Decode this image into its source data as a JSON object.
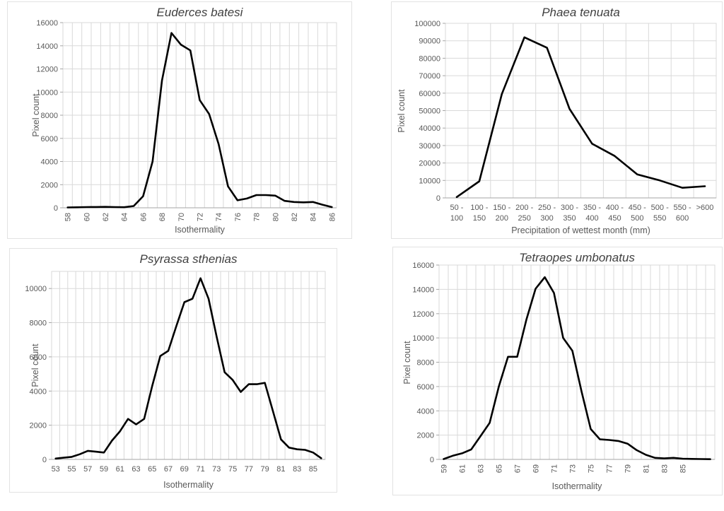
{
  "figure": {
    "background": "#ffffff",
    "panel_border_color": "#e2e2e2"
  },
  "theme": {
    "line_color": "#000000",
    "grid_color": "#d9d9d9",
    "axis_line_color": "#a6a6a6",
    "tick_label_color": "#595959",
    "axis_title_color": "#595959",
    "chart_title_color": "#404040"
  },
  "chart_data": [
    {
      "type": "line",
      "title": "Euderces batesi",
      "xlabel": "Isothermality",
      "ylabel": "Pixel count",
      "grid": true,
      "legend": null,
      "ylim": [
        0,
        16000
      ],
      "yticks": [
        0,
        2000,
        4000,
        6000,
        8000,
        10000,
        12000,
        14000,
        16000
      ],
      "x": [
        58,
        59,
        60,
        61,
        62,
        63,
        64,
        65,
        66,
        67,
        68,
        69,
        70,
        71,
        72,
        73,
        74,
        75,
        76,
        77,
        78,
        79,
        80,
        81,
        82,
        83,
        84,
        85,
        86
      ],
      "values": [
        30,
        40,
        60,
        70,
        80,
        60,
        50,
        150,
        1000,
        4000,
        11000,
        15100,
        14100,
        13600,
        9300,
        8100,
        5500,
        1850,
        650,
        800,
        1100,
        1100,
        1050,
        600,
        500,
        470,
        500,
        270,
        60
      ],
      "xticks": [
        58,
        60,
        62,
        64,
        66,
        68,
        70,
        72,
        74,
        76,
        78,
        80,
        82,
        84,
        86
      ],
      "xtick_rotation": -90
    },
    {
      "type": "line",
      "title": "Phaea tenuata",
      "xlabel": "Precipitation of wettest month (mm)",
      "ylabel": "Pixel count",
      "grid": true,
      "legend": null,
      "ylim": [
        0,
        100000
      ],
      "yticks": [
        0,
        10000,
        20000,
        30000,
        40000,
        50000,
        60000,
        70000,
        80000,
        90000,
        100000
      ],
      "categories": [
        [
          "50 -",
          "100"
        ],
        [
          "100 -",
          "150"
        ],
        [
          "150 -",
          "200"
        ],
        [
          "200 -",
          "250"
        ],
        [
          "250 -",
          "300"
        ],
        [
          "300 -",
          "350"
        ],
        [
          "350 -",
          "400"
        ],
        [
          "400 -",
          "450"
        ],
        [
          "450 -",
          "500"
        ],
        [
          "500 -",
          "550"
        ],
        [
          "550 -",
          "600"
        ],
        [
          ">600"
        ]
      ],
      "values": [
        500,
        9500,
        59500,
        92000,
        86000,
        51000,
        31000,
        24000,
        13500,
        10000,
        5800,
        6700
      ],
      "xtick_rotation": 0
    },
    {
      "type": "line",
      "title": "Psyrassa sthenias",
      "xlabel": "Isothermality",
      "ylabel": "Pixel count",
      "grid": true,
      "legend": null,
      "ylim": [
        0,
        11000
      ],
      "yticks": [
        0,
        2000,
        4000,
        6000,
        8000,
        10000
      ],
      "x": [
        53,
        54,
        55,
        56,
        57,
        58,
        59,
        60,
        61,
        62,
        63,
        64,
        65,
        66,
        67,
        68,
        69,
        70,
        71,
        72,
        73,
        74,
        75,
        76,
        77,
        78,
        79,
        80,
        81,
        82,
        83,
        84,
        85,
        86
      ],
      "values": [
        50,
        100,
        150,
        300,
        500,
        450,
        400,
        1100,
        1650,
        2370,
        2050,
        2370,
        4300,
        6050,
        6350,
        7800,
        9200,
        9400,
        10600,
        9400,
        7200,
        5100,
        4650,
        3950,
        4400,
        4400,
        4480,
        2830,
        1170,
        690,
        590,
        560,
        400,
        70
      ],
      "xticks": [
        53,
        55,
        57,
        59,
        61,
        63,
        65,
        67,
        69,
        71,
        73,
        75,
        77,
        79,
        81,
        83,
        85
      ],
      "xtick_rotation": 0
    },
    {
      "type": "line",
      "title": "Tetraopes umbonatus",
      "xlabel": "Isothermality",
      "ylabel": "Pixel count",
      "grid": true,
      "legend": null,
      "ylim": [
        0,
        16000
      ],
      "yticks": [
        0,
        2000,
        4000,
        6000,
        8000,
        10000,
        12000,
        14000,
        16000
      ],
      "x": [
        59,
        60,
        61,
        62,
        63,
        64,
        65,
        66,
        67,
        68,
        69,
        70,
        71,
        72,
        73,
        74,
        75,
        76,
        77,
        78,
        79,
        80,
        81,
        82,
        83,
        84,
        85,
        86,
        87,
        88
      ],
      "values": [
        30,
        300,
        500,
        820,
        1900,
        3000,
        6000,
        8450,
        8450,
        11500,
        14050,
        15000,
        13700,
        10000,
        8950,
        5600,
        2500,
        1650,
        1600,
        1520,
        1300,
        760,
        380,
        130,
        90,
        130,
        60,
        40,
        30,
        20
      ],
      "xticks": [
        59,
        61,
        63,
        65,
        67,
        69,
        71,
        73,
        75,
        77,
        79,
        81,
        83,
        85
      ],
      "xtick_rotation": -90
    }
  ]
}
